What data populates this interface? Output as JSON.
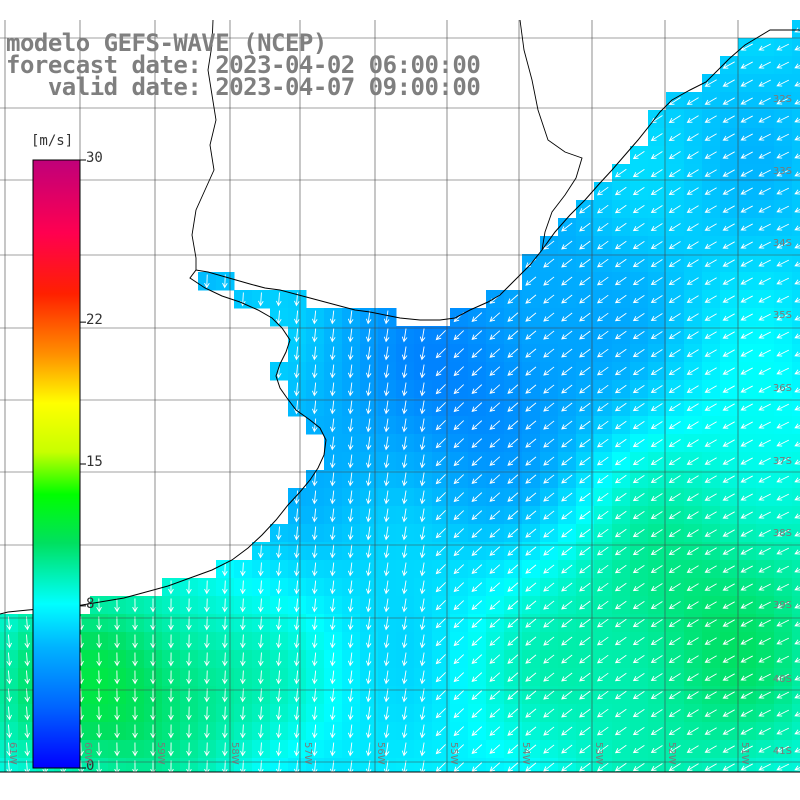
{
  "title": {
    "line1": "modelo GEFS-WAVE (NCEP)",
    "line2": "forecast date: 2023-04-02 06:00:00",
    "line3": "   valid date: 2023-04-07 09:00:00"
  },
  "legend": {
    "unit": "[m/s]",
    "ticks": [
      {
        "label": "30",
        "value": 30
      },
      {
        "label": "22",
        "value": 22
      },
      {
        "label": "15",
        "value": 15
      },
      {
        "label": "8",
        "value": 8
      },
      {
        "label": "0",
        "value": 0
      }
    ],
    "min": 0,
    "max": 30,
    "colors": [
      "#0000ff",
      "#0078ff",
      "#00c8ff",
      "#00ffff",
      "#00e070",
      "#00ff00",
      "#a0ff00",
      "#ffff00",
      "#ff8000",
      "#ff0000",
      "#ff0070",
      "#c0007a"
    ]
  },
  "grid": {
    "lat_labels": [
      "32S",
      "33S",
      "34S",
      "35S",
      "36S",
      "37S",
      "38S",
      "39S",
      "40S",
      "41S"
    ],
    "lon_labels": [
      "61W",
      "60W",
      "59W",
      "58W",
      "57W",
      "56W",
      "55W",
      "54W",
      "53W",
      "52W",
      "51W"
    ]
  },
  "map": {
    "variable": "wind speed",
    "units": "m/s",
    "colors": {
      "land": "#ffffff",
      "coast": "#000000",
      "grid": "#444444",
      "arrow": "#ffffff"
    }
  }
}
